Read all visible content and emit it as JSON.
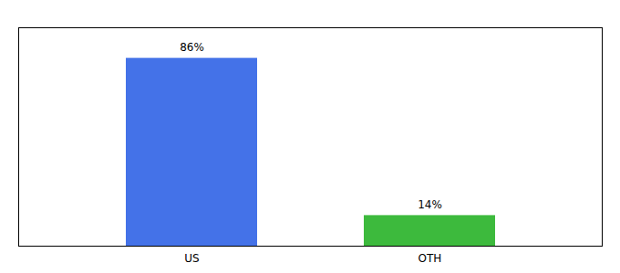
{
  "chart_data": {
    "type": "bar",
    "categories": [
      "US",
      "OTH"
    ],
    "values": [
      86,
      14
    ],
    "colors": [
      "#4472e8",
      "#3dba3d"
    ],
    "ylim": [
      0,
      100
    ],
    "data_labels": true,
    "value_labels": [
      "86%",
      "14%"
    ],
    "tick_labels": "x",
    "grid": false
  }
}
